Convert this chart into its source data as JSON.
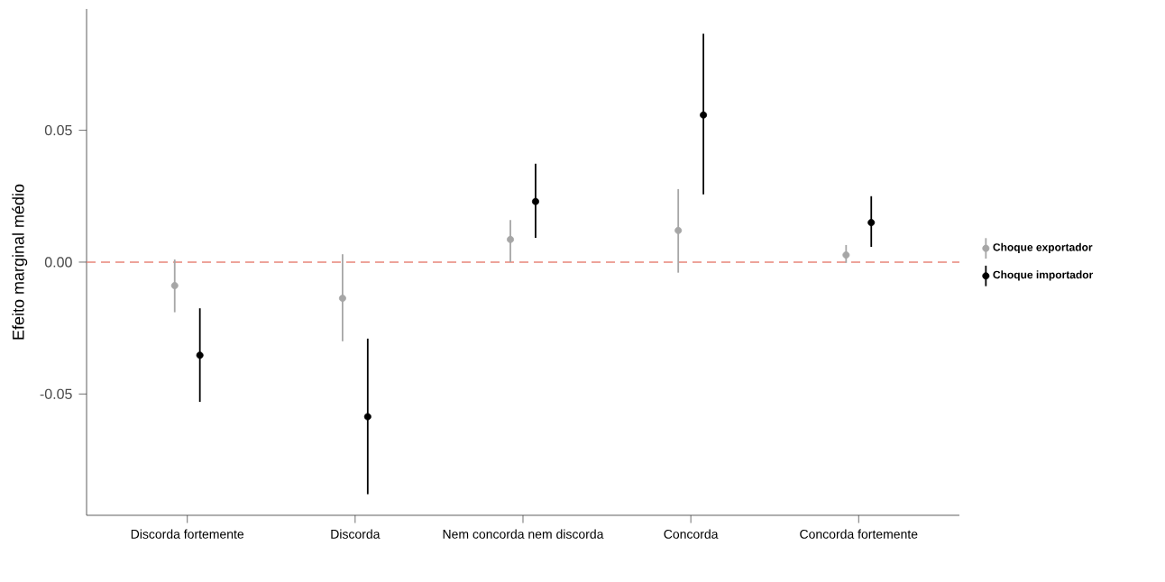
{
  "chart_data": {
    "type": "scatter",
    "ylabel": "Efeito marginal médio",
    "categories": [
      "Discorda fortemente",
      "Discorda",
      "Nem concorda nem discorda",
      "Concorda",
      "Concorda fortemente"
    ],
    "series": [
      {
        "name": "Choque exportador",
        "color": "#a6a6a6",
        "values": [
          -0.0089,
          -0.0137,
          0.0086,
          0.012,
          0.0027
        ],
        "errors": [
          [
            -0.019,
            0.001
          ],
          [
            -0.03,
            0.003
          ],
          [
            0.0,
            0.016
          ],
          [
            -0.004,
            0.0277
          ],
          [
            -0.0003,
            0.0065
          ]
        ]
      },
      {
        "name": "Choque importador",
        "color": "#000000",
        "values": [
          -0.0353,
          -0.0586,
          0.023,
          0.0558,
          0.015
        ],
        "errors": [
          [
            -0.053,
            -0.0175
          ],
          [
            -0.088,
            -0.029
          ],
          [
            0.0092,
            0.0373
          ],
          [
            0.0257,
            0.0866
          ],
          [
            0.0058,
            0.025
          ]
        ]
      }
    ],
    "ylim": [
      -0.096,
      0.096
    ],
    "yticks": [
      {
        "value": -0.05,
        "label": "-0.05"
      },
      {
        "value": 0,
        "label": "0.00"
      },
      {
        "value": 0.05,
        "label": "0.05"
      }
    ],
    "ref_lines": [
      {
        "axis": "y",
        "value": 0,
        "color": "#e8857a",
        "line_style": "dashed"
      }
    ],
    "marker": "circle",
    "grid": false,
    "legend": "right"
  }
}
